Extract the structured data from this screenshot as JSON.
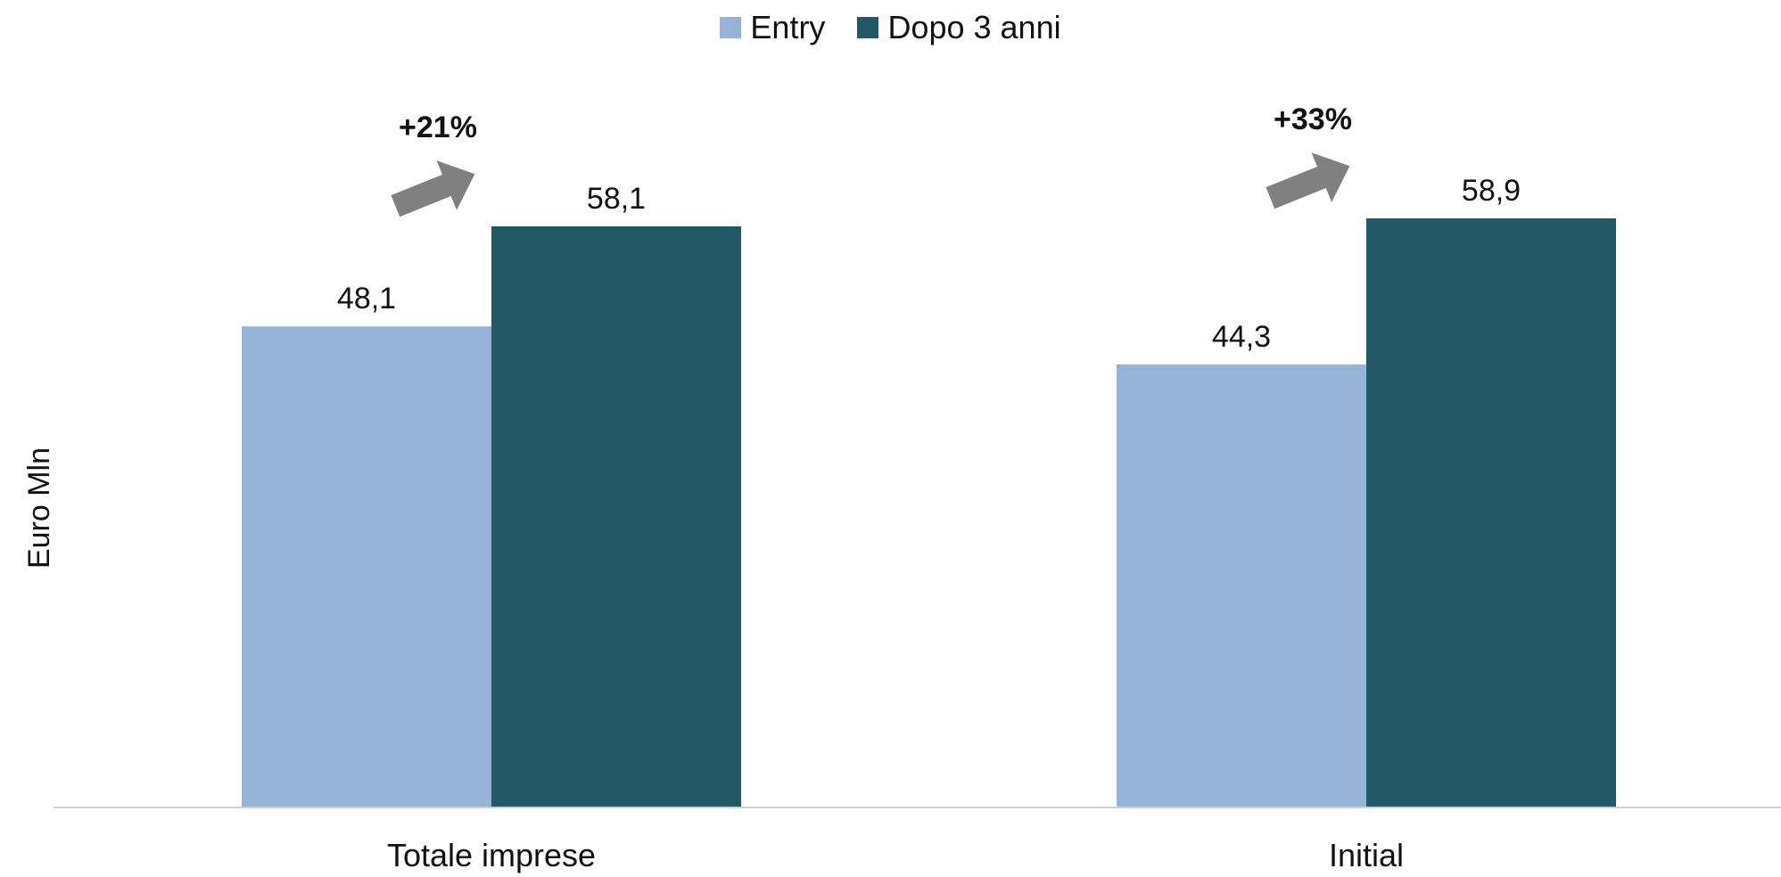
{
  "chart_data": {
    "type": "bar",
    "categories": [
      "Totale imprese",
      "Initial"
    ],
    "series": [
      {
        "name": "Entry",
        "values": [
          48.1,
          44.3
        ],
        "labels": [
          "48,1",
          "44,3"
        ],
        "color": "#97B3D7"
      },
      {
        "name": "Dopo 3 anni",
        "values": [
          58.1,
          58.9
        ],
        "labels": [
          "58,1",
          "58,9"
        ],
        "color": "#235967"
      }
    ],
    "annotations": [
      "+21%",
      "+33%"
    ],
    "arrow_color": "#808080",
    "ylabel": "Euro Mln",
    "ylim": [
      0,
      65
    ],
    "legend": "top-center",
    "grid": false
  }
}
